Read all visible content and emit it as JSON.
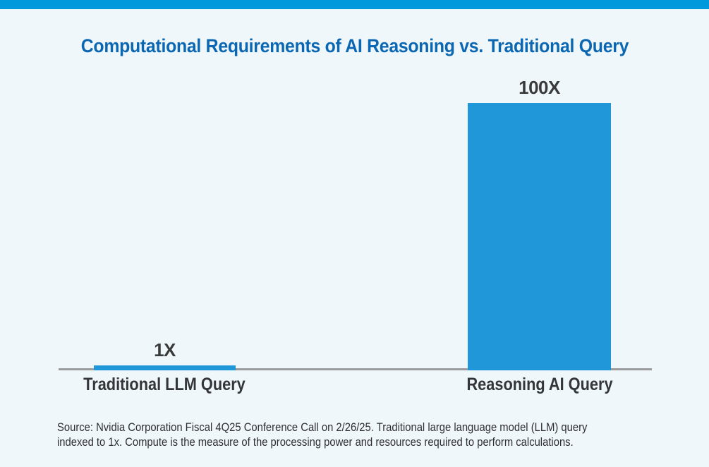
{
  "page": {
    "background": "#EFF7FB",
    "top_band_color": "#0099DC"
  },
  "title": {
    "text": "Computational Requirements of AI Reasoning vs. Traditional Query",
    "color": "#0B67B2"
  },
  "chart_data": {
    "type": "bar",
    "categories": [
      "Traditional LLM Query",
      "Reasoning AI Query"
    ],
    "values": [
      1,
      100
    ],
    "value_labels": [
      "1X",
      "100X"
    ],
    "title": "Computational Requirements of AI Reasoning vs. Traditional Query",
    "xlabel": "",
    "ylabel": "",
    "ylim": [
      0,
      100
    ],
    "grid": false,
    "legend": false,
    "bar_color": "#2097D8",
    "baseline_color": "#9B9B9B",
    "value_label_color": "#3A3A3A",
    "category_label_color": "#333538"
  },
  "source_note": {
    "line1": "Source: Nvidia Corporation Fiscal 4Q25 Conference Call on 2/26/25. Traditional large language model (LLM) query",
    "line2": "indexed to 1x. Compute is the measure of the processing power and resources required to perform calculations."
  }
}
